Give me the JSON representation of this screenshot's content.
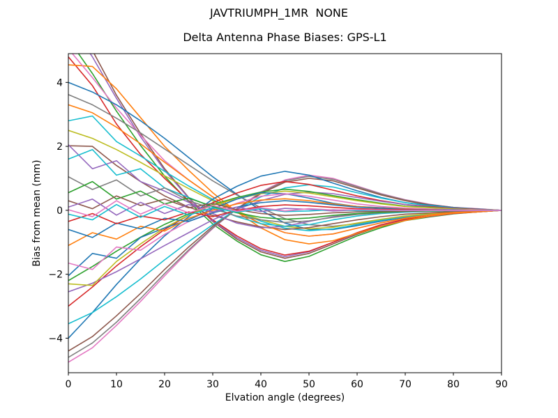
{
  "figure": {
    "suptitle": "JAVTRIUMPH_1MR  NONE",
    "background": "#ffffff"
  },
  "chart_data": {
    "type": "line",
    "title": "Delta Antenna Phase Biases: GPS-L1",
    "suptitle": "JAVTRIUMPH_1MR  NONE",
    "xlabel": "Elvation angle (degrees)",
    "ylabel": "Bias from mean (mm)",
    "xlim": [
      0,
      90
    ],
    "ylim": [
      -5.08,
      4.9
    ],
    "xticks": [
      0,
      10,
      20,
      30,
      40,
      50,
      60,
      70,
      80,
      90
    ],
    "yticks": [
      -4,
      -2,
      0,
      2,
      4
    ],
    "ytick_labels": [
      "−4",
      "−2",
      "0",
      "2",
      "4"
    ],
    "xtick_labels": [
      "0",
      "10",
      "20",
      "30",
      "40",
      "50",
      "60",
      "70",
      "80",
      "90"
    ],
    "grid": false,
    "legend": false,
    "line_width": 1.6,
    "x": [
      0,
      5,
      10,
      15,
      20,
      25,
      30,
      35,
      40,
      45,
      50,
      55,
      60,
      65,
      70,
      75,
      80,
      85,
      90
    ],
    "series": [
      {
        "name": "line-01",
        "color": "#2ca02c",
        "y": [
          5.35,
          4.28,
          3.1,
          2.03,
          1.07,
          0.27,
          -0.43,
          -0.96,
          -1.39,
          -1.6,
          -1.44,
          -1.12,
          -0.8,
          -0.54,
          -0.32,
          -0.21,
          -0.11,
          -0.05,
          0
        ]
      },
      {
        "name": "line-02",
        "color": "#8c564b",
        "y": [
          6.2,
          5.0,
          3.6,
          2.4,
          1.3,
          0.4,
          -0.35,
          -0.9,
          -1.3,
          -1.5,
          -1.35,
          -1.05,
          -0.75,
          -0.5,
          -0.3,
          -0.2,
          -0.1,
          -0.05,
          0
        ]
      },
      {
        "name": "line-03",
        "color": "#9467bd",
        "y": [
          5.9,
          4.8,
          3.5,
          2.3,
          1.25,
          0.38,
          -0.33,
          -0.85,
          -1.25,
          -1.45,
          -1.3,
          -1.0,
          -0.72,
          -0.48,
          -0.29,
          -0.19,
          -0.1,
          -0.05,
          0
        ]
      },
      {
        "name": "line-04",
        "color": "#d62728",
        "y": [
          4.8,
          3.9,
          2.7,
          1.75,
          1.0,
          0.3,
          -0.3,
          -0.8,
          -1.2,
          -1.4,
          -1.28,
          -1.0,
          -0.7,
          -0.45,
          -0.28,
          -0.18,
          -0.1,
          -0.05,
          0
        ]
      },
      {
        "name": "line-05",
        "color": "#ff7f0e",
        "y": [
          4.55,
          4.5,
          3.8,
          2.9,
          2.0,
          1.25,
          0.55,
          -0.05,
          -0.55,
          -0.92,
          -1.05,
          -0.95,
          -0.72,
          -0.5,
          -0.32,
          -0.18,
          -0.09,
          -0.05,
          0
        ]
      },
      {
        "name": "line-06",
        "color": "#e377c2",
        "y": [
          5.05,
          4.15,
          3.2,
          2.35,
          1.55,
          0.95,
          0.42,
          -0.04,
          -0.42,
          -0.7,
          -0.81,
          -0.74,
          -0.56,
          -0.39,
          -0.25,
          -0.14,
          -0.07,
          -0.04,
          0
        ]
      },
      {
        "name": "line-07",
        "color": "#1f77b4",
        "y": [
          4.0,
          3.7,
          3.3,
          2.8,
          2.25,
          1.65,
          1.05,
          0.5,
          0.0,
          -0.4,
          -0.6,
          -0.6,
          -0.48,
          -0.34,
          -0.22,
          -0.13,
          -0.06,
          -0.03,
          0
        ]
      },
      {
        "name": "line-08",
        "color": "#7f7f7f",
        "y": [
          3.62,
          3.3,
          2.88,
          2.42,
          1.92,
          1.42,
          0.92,
          0.48,
          0.08,
          -0.26,
          -0.45,
          -0.5,
          -0.42,
          -0.31,
          -0.21,
          -0.12,
          -0.06,
          -0.03,
          0
        ]
      },
      {
        "name": "line-09",
        "color": "#17becf",
        "y": [
          2.8,
          2.95,
          2.15,
          1.7,
          1.22,
          0.76,
          0.34,
          -0.03,
          -0.34,
          -0.56,
          -0.64,
          -0.58,
          -0.45,
          -0.31,
          -0.2,
          -0.11,
          -0.06,
          -0.03,
          0
        ]
      },
      {
        "name": "line-10",
        "color": "#bcbd22",
        "y": [
          2.5,
          2.25,
          1.9,
          1.5,
          1.08,
          0.68,
          0.3,
          -0.03,
          -0.3,
          -0.5,
          -0.58,
          -0.53,
          -0.4,
          -0.28,
          -0.18,
          -0.1,
          -0.05,
          -0.03,
          0
        ]
      },
      {
        "name": "line-11",
        "color": "#8c564b",
        "y": [
          2.02,
          2.0,
          1.4,
          0.9,
          0.45,
          0.1,
          -0.16,
          -0.36,
          -0.52,
          -0.6,
          -0.54,
          -0.42,
          -0.3,
          -0.2,
          -0.12,
          -0.08,
          -0.04,
          -0.02,
          0
        ]
      },
      {
        "name": "line-12",
        "color": "#ff7f0e",
        "y": [
          3.3,
          3.05,
          2.6,
          2.08,
          1.5,
          0.95,
          0.42,
          -0.04,
          -0.42,
          -0.7,
          -0.81,
          -0.74,
          -0.56,
          -0.39,
          -0.25,
          -0.14,
          -0.07,
          -0.04,
          0
        ]
      },
      {
        "name": "line-13",
        "color": "#e377c2",
        "y": [
          -4.75,
          -4.3,
          -3.6,
          -2.85,
          -2.05,
          -1.28,
          -0.57,
          0.05,
          0.57,
          0.95,
          1.1,
          1.0,
          0.76,
          0.52,
          0.33,
          0.19,
          0.09,
          0.05,
          0
        ]
      },
      {
        "name": "line-14",
        "color": "#7f7f7f",
        "y": [
          -4.6,
          -4.15,
          -3.5,
          -2.76,
          -1.98,
          -1.24,
          -0.55,
          0.04,
          0.55,
          0.92,
          1.06,
          0.97,
          0.74,
          0.51,
          0.32,
          0.18,
          0.09,
          0.04,
          0
        ]
      },
      {
        "name": "line-15",
        "color": "#8c564b",
        "y": [
          -4.4,
          -3.95,
          -3.3,
          -2.6,
          -1.85,
          -1.15,
          -0.5,
          0.04,
          0.52,
          0.88,
          1.0,
          0.92,
          0.7,
          0.48,
          0.3,
          0.17,
          0.08,
          0.04,
          0
        ]
      },
      {
        "name": "line-16",
        "color": "#1f77b4",
        "y": [
          -4.0,
          -3.2,
          -2.32,
          -1.52,
          -0.8,
          -0.2,
          0.35,
          0.75,
          1.07,
          1.22,
          1.1,
          0.85,
          0.61,
          0.4,
          0.24,
          0.16,
          0.08,
          0.04,
          0
        ]
      },
      {
        "name": "line-17",
        "color": "#17becf",
        "y": [
          -3.55,
          -3.2,
          -2.7,
          -2.15,
          -1.55,
          -0.98,
          -0.45,
          0.03,
          0.42,
          0.7,
          0.8,
          0.73,
          0.55,
          0.38,
          0.24,
          0.14,
          0.07,
          0.03,
          0
        ]
      },
      {
        "name": "line-18",
        "color": "#d62728",
        "y": [
          -3.0,
          -2.4,
          -1.74,
          -1.14,
          -0.6,
          -0.15,
          0.24,
          0.54,
          0.78,
          0.9,
          0.81,
          0.63,
          0.45,
          0.3,
          0.18,
          0.12,
          0.06,
          0.03,
          0
        ]
      },
      {
        "name": "line-19",
        "color": "#9467bd",
        "y": [
          -2.55,
          -2.28,
          -1.92,
          -1.52,
          -1.1,
          -0.7,
          -0.3,
          0.03,
          0.3,
          0.5,
          0.57,
          0.52,
          0.4,
          0.28,
          0.18,
          0.1,
          0.05,
          0.02,
          0
        ]
      },
      {
        "name": "line-20",
        "color": "#2ca02c",
        "y": [
          -2.2,
          -1.76,
          -1.28,
          -0.84,
          -0.44,
          -0.11,
          0.18,
          0.4,
          0.57,
          0.66,
          0.59,
          0.46,
          0.33,
          0.22,
          0.13,
          0.09,
          0.04,
          0.02,
          0
        ]
      },
      {
        "name": "line-21",
        "color": "#bcbd22",
        "y": [
          -2.3,
          -2.35,
          -1.6,
          -1.05,
          -0.55,
          -0.15,
          0.16,
          0.36,
          0.52,
          0.6,
          0.54,
          0.42,
          0.3,
          0.2,
          0.12,
          0.08,
          0.04,
          0.02,
          0
        ]
      },
      {
        "name": "line-22",
        "color": "#1f77b4",
        "y": [
          -2.05,
          -1.35,
          -1.5,
          -0.85,
          -0.55,
          -0.3,
          0.05,
          0.35,
          0.55,
          0.52,
          0.38,
          0.22,
          0.12,
          0.08,
          0.05,
          0.03,
          0.02,
          0.01,
          0
        ]
      },
      {
        "name": "line-23",
        "color": "#9467bd",
        "y": [
          2.05,
          1.3,
          1.55,
          0.9,
          0.6,
          0.25,
          -0.1,
          -0.4,
          -0.55,
          -0.5,
          -0.35,
          -0.2,
          -0.12,
          -0.08,
          -0.05,
          -0.03,
          -0.02,
          -0.01,
          0
        ]
      },
      {
        "name": "line-24",
        "color": "#17becf",
        "y": [
          1.6,
          1.9,
          1.1,
          1.3,
          0.7,
          0.4,
          0.1,
          -0.2,
          -0.42,
          -0.5,
          -0.45,
          -0.3,
          -0.18,
          -0.1,
          -0.06,
          -0.03,
          -0.01,
          0,
          0
        ]
      },
      {
        "name": "line-25",
        "color": "#e377c2",
        "y": [
          -1.65,
          -1.85,
          -1.15,
          -1.25,
          -0.75,
          -0.35,
          -0.05,
          0.22,
          0.44,
          0.52,
          0.44,
          0.32,
          0.2,
          0.12,
          0.07,
          0.04,
          0.02,
          0.01,
          0
        ]
      },
      {
        "name": "line-26",
        "color": "#7f7f7f",
        "y": [
          1.05,
          0.65,
          0.95,
          0.45,
          0.7,
          0.3,
          0.05,
          -0.18,
          -0.3,
          -0.38,
          -0.33,
          -0.22,
          -0.13,
          -0.08,
          -0.04,
          -0.02,
          -0.01,
          0,
          0
        ]
      },
      {
        "name": "line-27",
        "color": "#ff7f0e",
        "y": [
          -1.1,
          -0.7,
          -0.9,
          -0.5,
          -0.65,
          -0.25,
          0.0,
          0.2,
          0.32,
          0.36,
          0.3,
          0.2,
          0.12,
          0.07,
          0.04,
          0.02,
          0.01,
          0,
          0
        ]
      },
      {
        "name": "line-28",
        "color": "#2ca02c",
        "y": [
          0.55,
          0.9,
          0.35,
          0.6,
          0.2,
          0.38,
          0.12,
          -0.08,
          -0.22,
          -0.28,
          -0.24,
          -0.16,
          -0.1,
          -0.06,
          -0.03,
          -0.02,
          -0.01,
          0,
          0
        ]
      },
      {
        "name": "line-29",
        "color": "#1f77b4",
        "y": [
          -0.6,
          -0.85,
          -0.4,
          -0.58,
          -0.25,
          -0.35,
          -0.08,
          0.1,
          0.24,
          0.3,
          0.25,
          0.17,
          0.1,
          0.06,
          0.03,
          0.02,
          0.01,
          0,
          0
        ]
      },
      {
        "name": "line-30",
        "color": "#8c564b",
        "y": [
          0.3,
          0.05,
          0.45,
          0.15,
          0.35,
          0.08,
          0.22,
          0.02,
          -0.1,
          -0.16,
          -0.13,
          -0.08,
          -0.05,
          -0.03,
          -0.02,
          -0.01,
          0,
          0,
          0
        ]
      },
      {
        "name": "line-31",
        "color": "#d62728",
        "y": [
          -0.35,
          -0.1,
          -0.42,
          -0.18,
          -0.3,
          -0.05,
          -0.2,
          0.0,
          0.12,
          0.17,
          0.14,
          0.09,
          0.05,
          0.03,
          0.02,
          0.01,
          0,
          0,
          0
        ]
      },
      {
        "name": "line-32",
        "color": "#9467bd",
        "y": [
          0.1,
          0.35,
          -0.15,
          0.25,
          -0.1,
          0.18,
          -0.05,
          0.1,
          -0.04,
          0.06,
          0.03,
          -0.02,
          0.01,
          0,
          0,
          0,
          0,
          0,
          0
        ]
      },
      {
        "name": "line-33",
        "color": "#17becf",
        "y": [
          -0.12,
          -0.3,
          0.18,
          -0.22,
          0.12,
          -0.15,
          0.08,
          -0.06,
          0.05,
          -0.04,
          -0.02,
          0.02,
          -0.01,
          0,
          0,
          0,
          0,
          0,
          0
        ]
      },
      {
        "name": "line-34",
        "color": "#e377c2",
        "y": [
          0.02,
          -0.2,
          0.3,
          -0.12,
          0.2,
          -0.08,
          0.15,
          -0.03,
          0.08,
          -0.02,
          0.05,
          0.01,
          0.02,
          0.01,
          0,
          0,
          0,
          0,
          0
        ]
      }
    ]
  }
}
